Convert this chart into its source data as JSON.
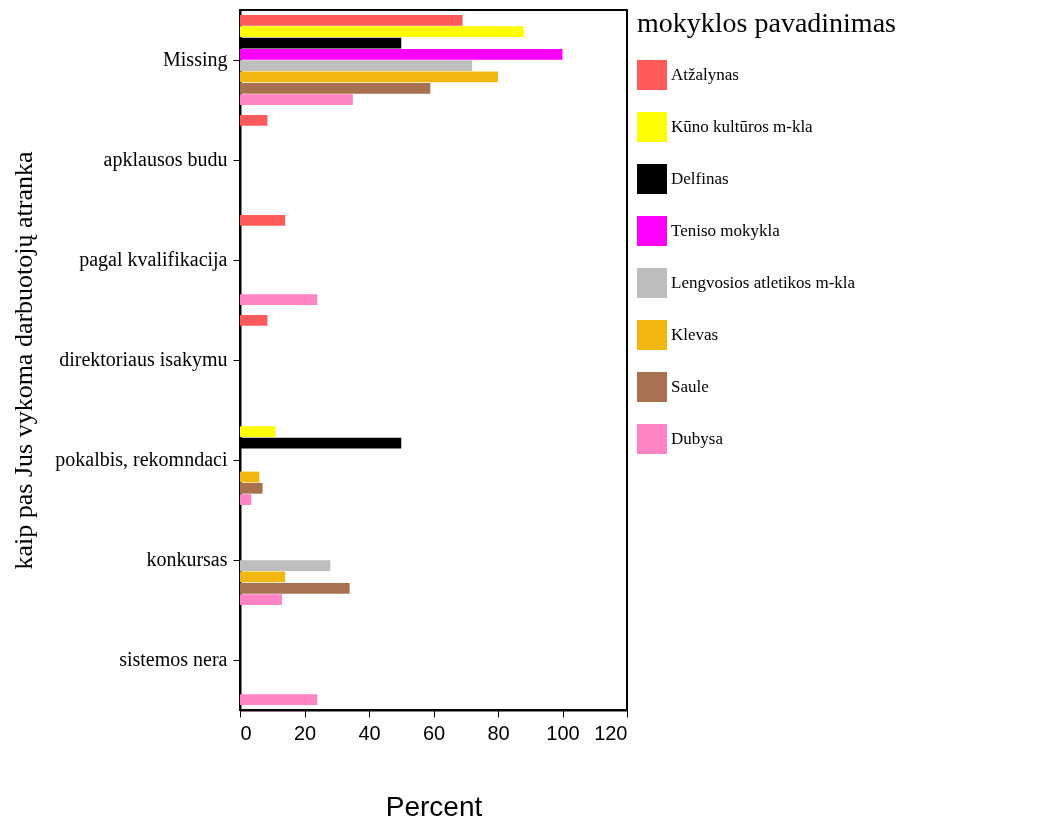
{
  "chart_data": {
    "type": "bar",
    "orientation": "horizontal",
    "xlabel": "Percent",
    "ylabel": "kaip pas Jus vykoma darbuotojų atranka",
    "legend_title": "mokyklos pavadinimas",
    "legend": "right",
    "grid": false,
    "categories": [
      "Missing",
      "apklausos budu",
      "pagal kvalifikacija",
      "direktoriaus isakymu",
      "pokalbis, rekomndaci",
      "konkursas",
      "sistemos nera"
    ],
    "xlim": [
      0,
      120
    ],
    "xticks": [
      0,
      20,
      40,
      60,
      80,
      100,
      120
    ],
    "series": [
      {
        "name": "Atžalynas",
        "color": "#ff5a5a",
        "values": [
          69,
          8.5,
          14,
          8.5,
          0,
          0,
          0
        ]
      },
      {
        "name": "Kūno kultūros m-kla",
        "color": "#ffff00",
        "values": [
          88,
          0,
          0,
          0,
          11,
          0,
          0
        ]
      },
      {
        "name": "Delfinas",
        "color": "#000000",
        "values": [
          50,
          0,
          0,
          0,
          50,
          0,
          0
        ]
      },
      {
        "name": "Teniso mokykla",
        "color": "#ff00ff",
        "values": [
          100,
          0,
          0,
          0,
          0,
          0,
          0
        ]
      },
      {
        "name": "Lengvosios atletikos m-kla",
        "color": "#bebebe",
        "values": [
          72,
          0,
          0,
          0,
          0,
          28,
          0
        ]
      },
      {
        "name": "Klevas",
        "color": "#f2b70e",
        "values": [
          80,
          0,
          0,
          0,
          6,
          14,
          0
        ]
      },
      {
        "name": "Saule",
        "color": "#a87250",
        "values": [
          59,
          0,
          0,
          0,
          7,
          34,
          0
        ]
      },
      {
        "name": "Dubysa",
        "color": "#ff82c3",
        "values": [
          35,
          0,
          24,
          0,
          3.5,
          13,
          24
        ]
      }
    ]
  }
}
